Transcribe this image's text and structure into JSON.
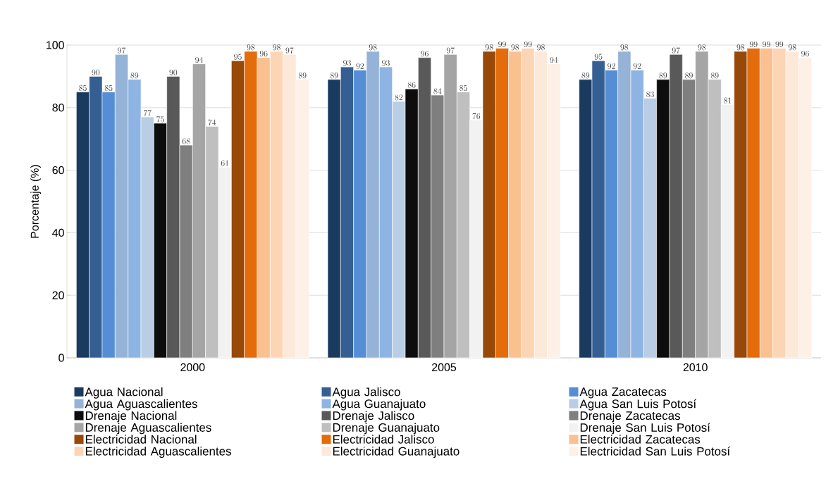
{
  "chart_data": {
    "type": "bar",
    "ylabel": "Porcentaje (%)",
    "categories": [
      "2000",
      "2005",
      "2010"
    ],
    "ylim": [
      0,
      100
    ],
    "yticks": [
      0,
      20,
      40,
      60,
      80,
      100
    ],
    "grid": "y",
    "legend": "bottom",
    "data_labels": true,
    "series": [
      {
        "name": "Agua Nacional",
        "color": "#1b3a5f",
        "values": [
          85,
          89,
          89
        ]
      },
      {
        "name": "Agua Jalisco",
        "color": "#355f92",
        "values": [
          90,
          93,
          95
        ]
      },
      {
        "name": "Agua Zacatecas",
        "color": "#558ed5",
        "values": [
          85,
          92,
          92
        ]
      },
      {
        "name": "Agua Aguascalientes",
        "color": "#95b3d7",
        "values": [
          97,
          98,
          98
        ]
      },
      {
        "name": "Agua Guanajuato",
        "color": "#8eb4e3",
        "values": [
          89,
          93,
          92
        ]
      },
      {
        "name": "Agua San Luis Potosí",
        "color": "#b9cde5",
        "values": [
          77,
          82,
          83
        ]
      },
      {
        "name": "Drenaje Nacional",
        "color": "#0d0d0d",
        "values": [
          75,
          86,
          89
        ]
      },
      {
        "name": "Drenaje Jalisco",
        "color": "#595959",
        "values": [
          90,
          96,
          97
        ]
      },
      {
        "name": "Drenaje Zacatecas",
        "color": "#7f7f7f",
        "values": [
          68,
          84,
          89
        ]
      },
      {
        "name": "Drenaje Aguascalientes",
        "color": "#a5a5a5",
        "values": [
          94,
          97,
          98
        ]
      },
      {
        "name": "Drenaje Guanajuato",
        "color": "#bfbfbf",
        "values": [
          74,
          85,
          89
        ]
      },
      {
        "name": "Drenaje San Luis Potosí",
        "color": "#f2f2f2",
        "values": [
          61,
          76,
          81
        ]
      },
      {
        "name": "Electricidad Nacional",
        "color": "#984807",
        "values": [
          95,
          98,
          98
        ]
      },
      {
        "name": "Electricidad Jalisco",
        "color": "#e46c0a",
        "values": [
          98,
          99,
          99
        ]
      },
      {
        "name": "Electricidad Zacatecas",
        "color": "#fac090",
        "values": [
          96,
          98,
          99
        ]
      },
      {
        "name": "Electricidad Aguascalientes",
        "color": "#fcd5b5",
        "values": [
          98,
          99,
          99
        ]
      },
      {
        "name": "Electricidad Guanajuato",
        "color": "#fde9d9",
        "values": [
          97,
          98,
          98
        ]
      },
      {
        "name": "Electricidad San Luis Potosí",
        "color": "#fdf0e6",
        "values": [
          89,
          94,
          96
        ]
      }
    ]
  }
}
